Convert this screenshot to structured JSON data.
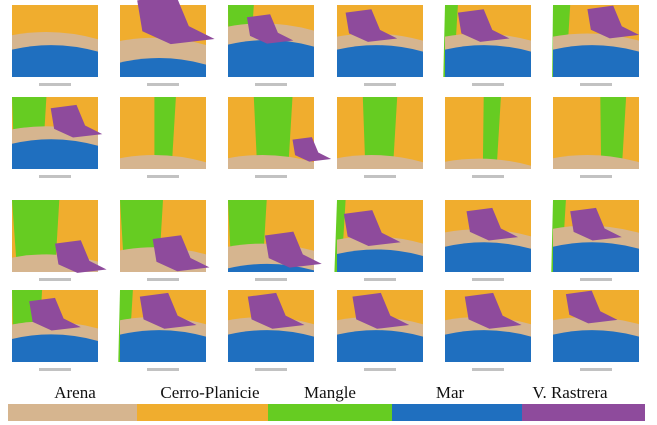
{
  "legend": [
    {
      "name": "Arena",
      "color": "#d6b58f"
    },
    {
      "name": "Cerro-Planicie",
      "color": "#f0ad2e"
    },
    {
      "name": "Mangle",
      "color": "#66cc22"
    },
    {
      "name": "Mar",
      "color": "#1f6fbf"
    },
    {
      "name": "V. Rastrera",
      "color": "#8e4b9c"
    }
  ]
}
